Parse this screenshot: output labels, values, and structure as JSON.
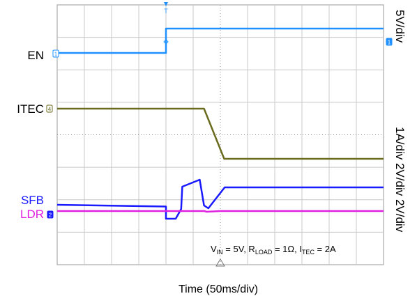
{
  "chart_data": {
    "type": "line",
    "title": "",
    "xlabel": "Time (50ms/div)",
    "x_unit": "ms",
    "x_divisions": 12,
    "y_divisions": 8,
    "xlim": [
      0,
      600
    ],
    "grid": true,
    "trigger_marker": "T",
    "annotation": {
      "parts": [
        {
          "t": "V",
          "sub": false
        },
        {
          "t": "IN",
          "sub": true
        },
        {
          "t": " = 5V, R",
          "sub": false
        },
        {
          "t": "LOAD",
          "sub": true
        },
        {
          "t": " = 1Ω, I",
          "sub": false
        },
        {
          "t": "TEC",
          "sub": true
        },
        {
          "t": " = 2A",
          "sub": false
        }
      ]
    },
    "scale_labels": {
      "top": "5V/div",
      "bottom": "1A/div 2V/div 2V/div"
    },
    "series": [
      {
        "name": "EN",
        "color": "#1e90ff",
        "channel_marker": "1",
        "scale": "5V/div",
        "points": [
          [
            0,
            0
          ],
          [
            200,
            0
          ],
          [
            200,
            5
          ],
          [
            600,
            5
          ]
        ],
        "unit": "V"
      },
      {
        "name": "ITEC",
        "color": "#6b6b1f",
        "channel_marker": "4",
        "scale": "1A/div",
        "points": [
          [
            0,
            2
          ],
          [
            270,
            2
          ],
          [
            307,
            0
          ],
          [
            600,
            0
          ]
        ],
        "unit": "A"
      },
      {
        "name": "SFB",
        "color": "#1a1aff",
        "channel_marker": "2",
        "scale": "2V/div",
        "points": [
          [
            0,
            0
          ],
          [
            200,
            -0.25
          ],
          [
            200,
            -2
          ],
          [
            218,
            -2
          ],
          [
            228,
            -0.6
          ],
          [
            230,
            2.6
          ],
          [
            262,
            3.6
          ],
          [
            270,
            -0.1
          ],
          [
            278,
            -0.5
          ],
          [
            308,
            2.5
          ],
          [
            600,
            2.5
          ]
        ],
        "unit": "V"
      },
      {
        "name": "LDR",
        "color": "#e020e0",
        "channel_marker": "3",
        "scale": "2V/div",
        "points": [
          [
            0,
            0
          ],
          [
            270,
            0
          ],
          [
            275,
            -0.1
          ],
          [
            300,
            0
          ],
          [
            600,
            0
          ]
        ],
        "unit": "V"
      }
    ]
  }
}
